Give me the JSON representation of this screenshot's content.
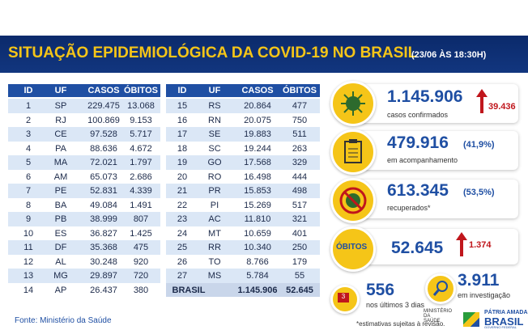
{
  "header": {
    "title": "SITUAÇÃO EPIDEMIOLÓGICA DA COVID-19 NO BRASIL",
    "date": "(23/06 ÀS 18:30H)"
  },
  "tables": [
    {
      "columns": [
        "ID",
        "UF",
        "CASOS",
        "ÓBITOS"
      ],
      "rows": [
        [
          "1",
          "SP",
          "229.475",
          "13.068"
        ],
        [
          "2",
          "RJ",
          "100.869",
          "9.153"
        ],
        [
          "3",
          "CE",
          "97.528",
          "5.717"
        ],
        [
          "4",
          "PA",
          "88.636",
          "4.672"
        ],
        [
          "5",
          "MA",
          "72.021",
          "1.797"
        ],
        [
          "6",
          "AM",
          "65.073",
          "2.686"
        ],
        [
          "7",
          "PE",
          "52.831",
          "4.339"
        ],
        [
          "8",
          "BA",
          "49.084",
          "1.491"
        ],
        [
          "9",
          "PB",
          "38.999",
          "807"
        ],
        [
          "10",
          "ES",
          "36.827",
          "1.425"
        ],
        [
          "11",
          "DF",
          "35.368",
          "475"
        ],
        [
          "12",
          "AL",
          "30.248",
          "920"
        ],
        [
          "13",
          "MG",
          "29.897",
          "720"
        ],
        [
          "14",
          "AP",
          "26.437",
          "380"
        ]
      ]
    },
    {
      "columns": [
        "ID",
        "UF",
        "CASOS",
        "ÓBITOS"
      ],
      "rows": [
        [
          "15",
          "RS",
          "20.864",
          "477"
        ],
        [
          "16",
          "RN",
          "20.075",
          "750"
        ],
        [
          "17",
          "SE",
          "19.883",
          "511"
        ],
        [
          "18",
          "SC",
          "19.244",
          "263"
        ],
        [
          "19",
          "GO",
          "17.568",
          "329"
        ],
        [
          "20",
          "RO",
          "16.498",
          "444"
        ],
        [
          "21",
          "PR",
          "15.853",
          "498"
        ],
        [
          "22",
          "PI",
          "15.269",
          "517"
        ],
        [
          "23",
          "AC",
          "11.810",
          "321"
        ],
        [
          "24",
          "MT",
          "10.659",
          "401"
        ],
        [
          "25",
          "RR",
          "10.340",
          "250"
        ],
        [
          "26",
          "TO",
          "8.766",
          "179"
        ],
        [
          "27",
          "MS",
          "5.784",
          "55"
        ]
      ],
      "total": [
        "BRASIL",
        "1.145.906",
        "52.645"
      ]
    }
  ],
  "stats": {
    "confirmed": {
      "value": "1.145.906",
      "label": "casos confirmados",
      "increase": "39.436"
    },
    "monitoring": {
      "value": "479.916",
      "percent": "(41,9%)",
      "label": "em acompanhamento"
    },
    "recovered": {
      "value": "613.345",
      "percent": "(53,5%)",
      "label": "recuperados*"
    },
    "deaths": {
      "label": "ÓBITOS",
      "value": "52.645",
      "increase": "1.374"
    },
    "recent": {
      "badge": "3",
      "value": "556",
      "label": "nos últimos 3 dias"
    },
    "investigation": {
      "value": "3.911",
      "label": "em investigação"
    }
  },
  "footer": {
    "source": "Fonte: Ministério da Saúde",
    "note": "*estimativas sujeitas à revisão.",
    "ministry": "MINISTÉRIO DA SAÚDE",
    "slogan": "PÁTRIA AMADA",
    "brand": "BRASIL",
    "government": "GOVERNO FEDERAL"
  }
}
